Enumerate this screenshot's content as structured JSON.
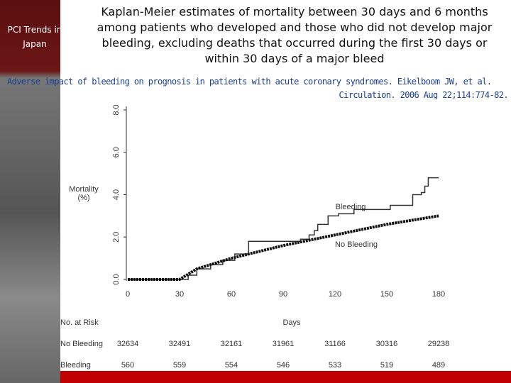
{
  "header": {
    "badge": "PCI Trends in Japan",
    "title": "Kaplan-Meier estimates of mortality between 30 days and 6 months among patients who developed and those who did not develop major bleeding, excluding deaths that occurred during the first 30 days or within 30 days of a major bleed",
    "citation": "Adverse impact of bleeding on prognosis in patients with acute coronary syndromes. Eikelboom JW, et al. Circulation. 2006 Aug 22;114:774-82."
  },
  "chart_data": {
    "type": "line",
    "ylabel": "Mortality (%)",
    "xlabel": "Days",
    "xlim": [
      0,
      180
    ],
    "xticks": [
      0,
      30,
      60,
      90,
      120,
      150,
      180
    ],
    "ylim": [
      0,
      8
    ],
    "yticks": [
      {
        "value": 0,
        "label": "0.0"
      },
      {
        "value": 2,
        "label": "2.0"
      },
      {
        "value": 4,
        "label": "4.0"
      },
      {
        "value": 6,
        "label": "6.0"
      },
      {
        "value": 8,
        "label": "8.0"
      }
    ],
    "series": [
      {
        "name": "Bleeding",
        "color": "#333333",
        "drawstyle": "steps-post",
        "x": [
          0,
          30,
          35,
          40,
          48,
          55,
          62,
          70,
          100,
          105,
          108,
          110,
          116,
          122,
          131,
          152,
          165,
          170,
          172,
          174,
          180
        ],
        "values": [
          0,
          0,
          0.2,
          0.5,
          0.7,
          0.9,
          1.2,
          1.8,
          1.9,
          2.1,
          2.3,
          2.6,
          3.0,
          3.1,
          3.3,
          3.5,
          4.0,
          4.1,
          4.4,
          4.8,
          4.8
        ]
      },
      {
        "name": "No Bleeding",
        "color": "#111111",
        "drawstyle": "dotted",
        "x": [
          0,
          30,
          40,
          60,
          90,
          120,
          150,
          180
        ],
        "values": [
          0,
          0,
          0.5,
          1.0,
          1.6,
          2.1,
          2.6,
          3.0
        ]
      }
    ],
    "risk_table": {
      "title": "No. at Risk",
      "x": [
        0,
        30,
        60,
        90,
        120,
        150,
        180
      ],
      "rows": [
        {
          "name": "No Bleeding",
          "values": [
            32634,
            32491,
            32161,
            31961,
            31166,
            30316,
            29238
          ]
        },
        {
          "name": "Bleeding",
          "values": [
            560,
            559,
            554,
            546,
            533,
            519,
            489
          ]
        }
      ]
    }
  }
}
